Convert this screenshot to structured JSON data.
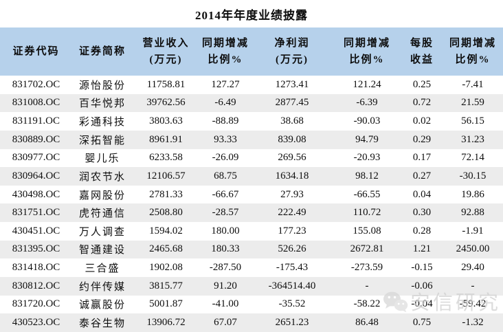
{
  "title": "2014年年度业绩披露",
  "watermark": {
    "label": "安信研究",
    "icon": "wechat-icon"
  },
  "colors": {
    "header_bg": "#B6D1EB",
    "row_bg": "#FFFFFF",
    "row_alt_bg": "#ECECEC",
    "watermark": "#CFCFCF",
    "text": "#0D0D0D"
  },
  "table": {
    "columns": [
      {
        "line1": "证券代码",
        "line2": ""
      },
      {
        "line1": "证券简称",
        "line2": ""
      },
      {
        "line1": "营业收入",
        "line2": "(万元)"
      },
      {
        "line1": "同期增减",
        "line2": "比例%"
      },
      {
        "line1": "净利润",
        "line2": "(万元)"
      },
      {
        "line1": "同期增减",
        "line2": "比例%"
      },
      {
        "line1": "每股",
        "line2": "收益"
      },
      {
        "line1": "同期增减",
        "line2": "比例%"
      }
    ],
    "rows": [
      [
        "831702.OC",
        "源怡股份",
        "11758.81",
        "127.27",
        "1273.41",
        "121.24",
        "0.25",
        "-7.41"
      ],
      [
        "831008.OC",
        "百华悦邦",
        "39762.56",
        "-6.49",
        "2877.45",
        "-6.39",
        "0.72",
        "21.59"
      ],
      [
        "831191.OC",
        "彩通科技",
        "3803.63",
        "-88.89",
        "38.68",
        "-90.03",
        "0.02",
        "56.15"
      ],
      [
        "830889.OC",
        "深拓智能",
        "8961.91",
        "93.33",
        "839.08",
        "94.79",
        "0.29",
        "31.23"
      ],
      [
        "830977.OC",
        "婴儿乐",
        "6233.58",
        "-26.09",
        "269.56",
        "-20.93",
        "0.17",
        "72.14"
      ],
      [
        "830964.OC",
        "润农节水",
        "12106.57",
        "68.75",
        "1634.18",
        "98.12",
        "0.27",
        "-30.15"
      ],
      [
        "430498.OC",
        "嘉网股份",
        "2781.33",
        "-66.67",
        "27.93",
        "-66.55",
        "0.04",
        "19.86"
      ],
      [
        "831751.OC",
        "虎符通信",
        "2508.80",
        "-28.57",
        "222.49",
        "110.72",
        "0.30",
        "92.88"
      ],
      [
        "430451.OC",
        "万人调查",
        "1594.02",
        "180.00",
        "177.23",
        "155.08",
        "0.28",
        "-1.91"
      ],
      [
        "831395.OC",
        "智通建设",
        "2465.68",
        "180.33",
        "526.26",
        "2672.81",
        "1.21",
        "2450.00"
      ],
      [
        "831418.OC",
        "三合盛",
        "1902.08",
        "-287.50",
        "-175.43",
        "-273.59",
        "-0.15",
        "29.40"
      ],
      [
        "830812.OC",
        "约伴传媒",
        "3815.77",
        "91.20",
        "-364514.40",
        "-",
        "-0.06",
        "-"
      ],
      [
        "831720.OC",
        "诚赢股份",
        "5001.87",
        "-41.00",
        "-35.52",
        "-58.22",
        "-0.04",
        "-59.42"
      ],
      [
        "430523.OC",
        "泰谷生物",
        "13906.72",
        "67.07",
        "2651.23",
        "86.48",
        "0.75",
        "-1.32"
      ]
    ]
  }
}
